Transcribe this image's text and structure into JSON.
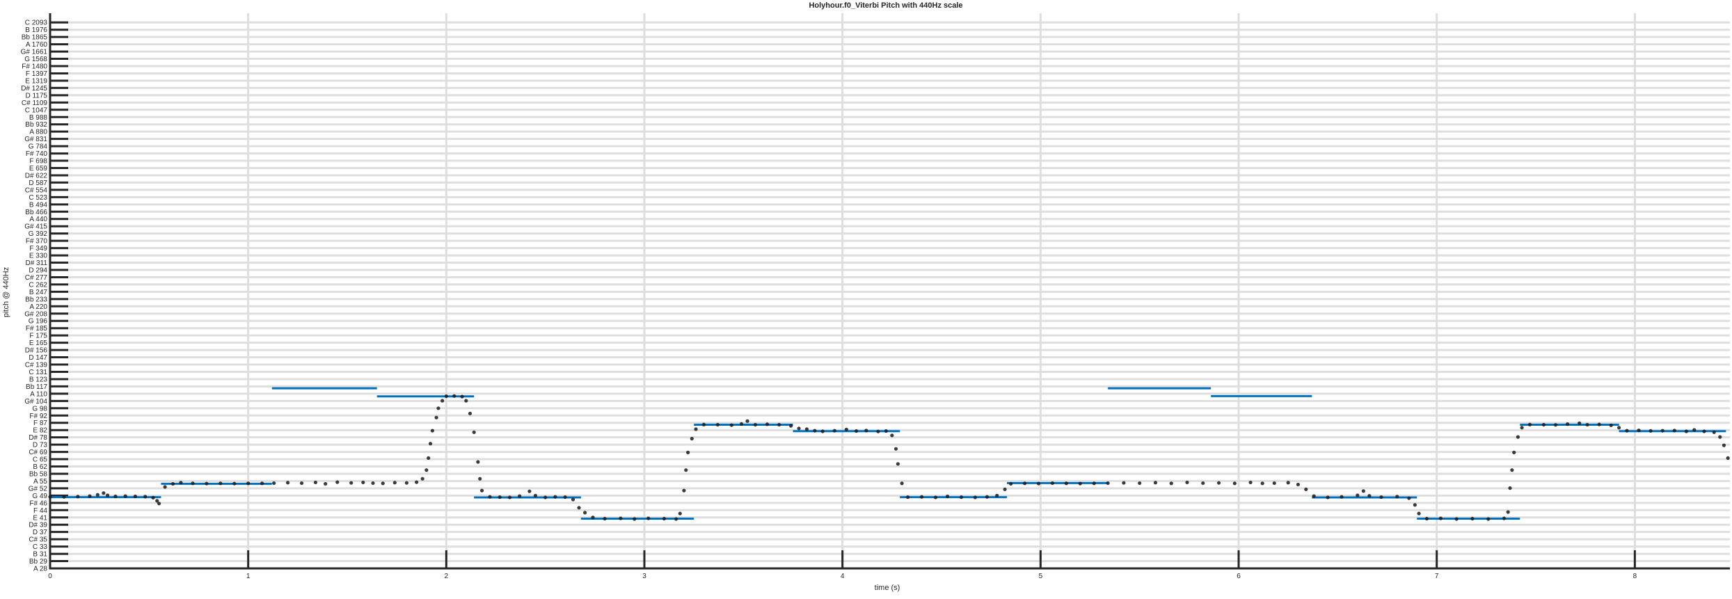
{
  "chart_data": {
    "type": "line",
    "title": "Holyhour.f0_Viterbi Pitch with 440Hz scale",
    "xlabel": "time (s)",
    "ylabel": "pitch @ 440Hz",
    "xlim": [
      0,
      8.48
    ],
    "x_ticks": [
      "0",
      "1",
      "2",
      "3",
      "4",
      "5",
      "6",
      "7",
      "8"
    ],
    "y_scale": "log2 (semitone rows)",
    "y_tick_labels": [
      "A 28",
      "Bb 29",
      "B 31",
      "C 33",
      "C# 35",
      "D 37",
      "D# 39",
      "E 41",
      "F 44",
      "F# 46",
      "G 49",
      "G# 52",
      "A 55",
      "Bb 58",
      "B 62",
      "C 65",
      "C# 69",
      "D 73",
      "D# 78",
      "E 82",
      "F 87",
      "F# 92",
      "G 98",
      "G# 104",
      "A 110",
      "Bb 117",
      "B 123",
      "C 131",
      "C# 139",
      "D 147",
      "D# 156",
      "E 165",
      "F 175",
      "F# 185",
      "G 196",
      "G# 208",
      "A 220",
      "Bb 233",
      "B 247",
      "C 262",
      "C# 277",
      "D 294",
      "D# 311",
      "E 330",
      "F 349",
      "F# 370",
      "G 392",
      "G# 415",
      "A 440",
      "Bb 466",
      "B 494",
      "C 523",
      "C# 554",
      "D 587",
      "D# 622",
      "E 659",
      "F 698",
      "F# 740",
      "G 784",
      "G# 831",
      "A 880",
      "Bb 932",
      "B 988",
      "C 1047",
      "C# 1109",
      "D 1175",
      "D# 1245",
      "E 1319",
      "F 1397",
      "F# 1480",
      "G 1568",
      "G# 1661",
      "A 1760",
      "Bb 1865",
      "B 1976",
      "C 2093"
    ],
    "grid": true,
    "colors": {
      "notes": "#0072bd",
      "f0": "#1a1a1a",
      "grid": "#dedede",
      "axis": "#262626"
    },
    "series": [
      {
        "legend": false,
        "style": "horizontal note segments",
        "segments": [
          {
            "x0": 0.0,
            "x1": 0.56,
            "y": 48.4
          },
          {
            "x0": 0.56,
            "x1": 1.12,
            "y": 53.8
          },
          {
            "x0": 1.12,
            "x1": 1.65,
            "y": 114.8
          },
          {
            "x0": 1.65,
            "x1": 2.14,
            "y": 107.7
          },
          {
            "x0": 2.14,
            "x1": 2.68,
            "y": 48.3
          },
          {
            "x0": 2.68,
            "x1": 3.25,
            "y": 40.8
          },
          {
            "x0": 3.25,
            "x1": 3.75,
            "y": 86.0
          },
          {
            "x0": 3.75,
            "x1": 4.29,
            "y": 81.7
          },
          {
            "x0": 4.29,
            "x1": 4.83,
            "y": 48.4
          },
          {
            "x0": 4.83,
            "x1": 5.34,
            "y": 54.1
          },
          {
            "x0": 5.34,
            "x1": 5.86,
            "y": 114.8
          },
          {
            "x0": 5.86,
            "x1": 6.37,
            "y": 107.9
          },
          {
            "x0": 6.37,
            "x1": 6.9,
            "y": 48.3
          },
          {
            "x0": 6.9,
            "x1": 7.42,
            "y": 40.8
          },
          {
            "x0": 7.42,
            "x1": 7.92,
            "y": 86.0
          },
          {
            "x0": 7.92,
            "x1": 8.46,
            "y": 81.7
          }
        ]
      },
      {
        "legend": false,
        "style": "dots",
        "points": [
          [
            0.0,
            48.5
          ],
          [
            0.07,
            48.5
          ],
          [
            0.14,
            48.6
          ],
          [
            0.2,
            48.8
          ],
          [
            0.24,
            49.3
          ],
          [
            0.27,
            50.0
          ],
          [
            0.29,
            49.1
          ],
          [
            0.33,
            48.7
          ],
          [
            0.38,
            48.8
          ],
          [
            0.43,
            48.7
          ],
          [
            0.48,
            48.6
          ],
          [
            0.52,
            48.2
          ],
          [
            0.54,
            47.0
          ],
          [
            0.55,
            46.0
          ],
          [
            0.58,
            52.5
          ],
          [
            0.62,
            53.8
          ],
          [
            0.66,
            54.3
          ],
          [
            0.72,
            54.0
          ],
          [
            0.79,
            53.9
          ],
          [
            0.86,
            54.0
          ],
          [
            0.93,
            53.9
          ],
          [
            1.0,
            54.0
          ],
          [
            1.07,
            54.0
          ],
          [
            1.13,
            54.1
          ],
          [
            1.2,
            54.3
          ],
          [
            1.27,
            54.1
          ],
          [
            1.34,
            54.4
          ],
          [
            1.39,
            53.8
          ],
          [
            1.45,
            54.5
          ],
          [
            1.52,
            54.2
          ],
          [
            1.58,
            54.4
          ],
          [
            1.63,
            54.1
          ],
          [
            1.68,
            54.0
          ],
          [
            1.74,
            54.3
          ],
          [
            1.8,
            54.2
          ],
          [
            1.85,
            54.5
          ],
          [
            1.88,
            56.0
          ],
          [
            1.9,
            60.0
          ],
          [
            1.91,
            66.0
          ],
          [
            1.92,
            74.0
          ],
          [
            1.93,
            82.0
          ],
          [
            1.95,
            91.0
          ],
          [
            1.96,
            98.0
          ],
          [
            1.98,
            104.0
          ],
          [
            2.0,
            107.8
          ],
          [
            2.04,
            108.0
          ],
          [
            2.08,
            107.5
          ],
          [
            2.1,
            104.0
          ],
          [
            2.12,
            94.0
          ],
          [
            2.14,
            81.0
          ],
          [
            2.16,
            64.0
          ],
          [
            2.17,
            56.0
          ],
          [
            2.18,
            51.0
          ],
          [
            2.22,
            48.5
          ],
          [
            2.27,
            48.4
          ],
          [
            2.32,
            48.3
          ],
          [
            2.37,
            48.8
          ],
          [
            2.42,
            50.7
          ],
          [
            2.45,
            49.0
          ],
          [
            2.5,
            48.3
          ],
          [
            2.55,
            48.5
          ],
          [
            2.6,
            48.4
          ],
          [
            2.64,
            47.5
          ],
          [
            2.67,
            44.5
          ],
          [
            2.7,
            42.8
          ],
          [
            2.74,
            41.2
          ],
          [
            2.8,
            40.8
          ],
          [
            2.88,
            40.9
          ],
          [
            2.95,
            40.7
          ],
          [
            3.02,
            40.9
          ],
          [
            3.1,
            40.8
          ],
          [
            3.16,
            40.7
          ],
          [
            3.18,
            42.5
          ],
          [
            3.2,
            51.0
          ],
          [
            3.21,
            60.0
          ],
          [
            3.22,
            69.0
          ],
          [
            3.24,
            77.0
          ],
          [
            3.26,
            83.0
          ],
          [
            3.3,
            86.1
          ],
          [
            3.37,
            86.0
          ],
          [
            3.44,
            85.7
          ],
          [
            3.49,
            86.5
          ],
          [
            3.52,
            88.5
          ],
          [
            3.56,
            86.0
          ],
          [
            3.62,
            86.3
          ],
          [
            3.68,
            86.0
          ],
          [
            3.74,
            85.2
          ],
          [
            3.78,
            83.5
          ],
          [
            3.82,
            83.0
          ],
          [
            3.86,
            82.0
          ],
          [
            3.9,
            81.6
          ],
          [
            3.96,
            82.0
          ],
          [
            4.02,
            82.8
          ],
          [
            4.07,
            81.8
          ],
          [
            4.12,
            82.1
          ],
          [
            4.18,
            81.5
          ],
          [
            4.22,
            81.8
          ],
          [
            4.25,
            79.0
          ],
          [
            4.27,
            71.0
          ],
          [
            4.28,
            63.0
          ],
          [
            4.3,
            54.0
          ],
          [
            4.33,
            48.4
          ],
          [
            4.4,
            48.5
          ],
          [
            4.47,
            48.3
          ],
          [
            4.53,
            48.7
          ],
          [
            4.6,
            48.4
          ],
          [
            4.67,
            48.3
          ],
          [
            4.73,
            48.5
          ],
          [
            4.78,
            49.0
          ],
          [
            4.82,
            51.5
          ],
          [
            4.85,
            53.8
          ],
          [
            4.92,
            54.0
          ],
          [
            4.99,
            53.9
          ],
          [
            5.06,
            54.1
          ],
          [
            5.13,
            54.0
          ],
          [
            5.2,
            53.9
          ],
          [
            5.27,
            54.0
          ],
          [
            5.34,
            54.1
          ],
          [
            5.42,
            54.2
          ],
          [
            5.5,
            54.1
          ],
          [
            5.58,
            54.3
          ],
          [
            5.66,
            54.0
          ],
          [
            5.74,
            54.4
          ],
          [
            5.82,
            54.1
          ],
          [
            5.9,
            54.2
          ],
          [
            5.98,
            54.0
          ],
          [
            6.06,
            54.4
          ],
          [
            6.12,
            54.0
          ],
          [
            6.18,
            54.1
          ],
          [
            6.25,
            54.3
          ],
          [
            6.3,
            53.5
          ],
          [
            6.34,
            51.5
          ],
          [
            6.38,
            48.8
          ],
          [
            6.45,
            48.3
          ],
          [
            6.52,
            48.5
          ],
          [
            6.6,
            49.1
          ],
          [
            6.63,
            50.8
          ],
          [
            6.66,
            48.9
          ],
          [
            6.72,
            48.4
          ],
          [
            6.8,
            48.6
          ],
          [
            6.86,
            48.0
          ],
          [
            6.89,
            45.5
          ],
          [
            6.91,
            42.5
          ],
          [
            6.95,
            40.8
          ],
          [
            7.02,
            40.9
          ],
          [
            7.1,
            40.7
          ],
          [
            7.18,
            40.8
          ],
          [
            7.26,
            40.7
          ],
          [
            7.34,
            40.9
          ],
          [
            7.36,
            43.0
          ],
          [
            7.37,
            52.0
          ],
          [
            7.38,
            60.0
          ],
          [
            7.39,
            69.0
          ],
          [
            7.41,
            78.0
          ],
          [
            7.43,
            84.0
          ],
          [
            7.47,
            86.1
          ],
          [
            7.54,
            86.0
          ],
          [
            7.6,
            85.9
          ],
          [
            7.66,
            86.4
          ],
          [
            7.72,
            87.0
          ],
          [
            7.76,
            86.0
          ],
          [
            7.82,
            86.2
          ],
          [
            7.88,
            85.6
          ],
          [
            7.92,
            84.0
          ],
          [
            7.96,
            82.0
          ],
          [
            8.02,
            82.2
          ],
          [
            8.08,
            81.9
          ],
          [
            8.14,
            82.0
          ],
          [
            8.2,
            82.1
          ],
          [
            8.26,
            81.6
          ],
          [
            8.3,
            82.5
          ],
          [
            8.35,
            81.6
          ],
          [
            8.4,
            81.0
          ],
          [
            8.43,
            78.0
          ],
          [
            8.45,
            73.0
          ],
          [
            8.47,
            66.0
          ]
        ]
      }
    ]
  }
}
